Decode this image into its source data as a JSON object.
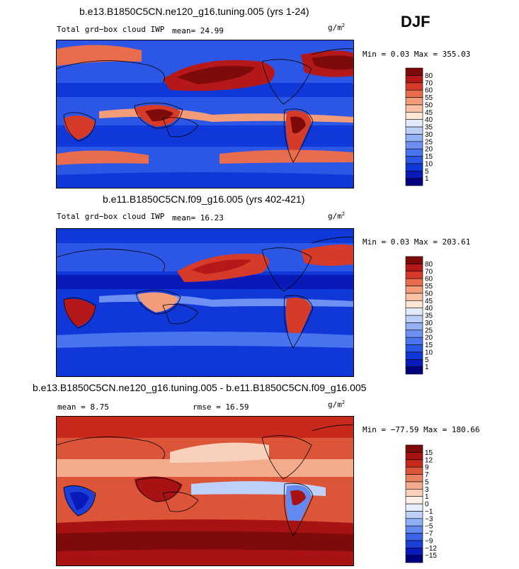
{
  "season": "DJF",
  "panels": [
    {
      "id": "p1",
      "title": "b.e13.B1850C5CN.ne120_g16.tuning.005 (yrs 1-24)",
      "left_label": "Total grd−box cloud IWP",
      "mean_text": "mean=  24.99",
      "units": "g/m",
      "units_sup": "2",
      "minmax": "Min =   0.03 Max = 355.03",
      "levels": [
        "1",
        "5",
        "10",
        "15",
        "20",
        "25",
        "30",
        "35",
        "40",
        "45",
        "50",
        "55",
        "60",
        "70",
        "80"
      ],
      "colors": [
        "#00007d",
        "#0a1ab9",
        "#1038d8",
        "#2c57e6",
        "#4a73ef",
        "#6d90f2",
        "#93b0f5",
        "#bccff8",
        "#e3eafb",
        "#fde6d6",
        "#f9c2a5",
        "#f39c7a",
        "#e86c4e",
        "#d63b2a",
        "#b41818",
        "#7e0a0a"
      ]
    },
    {
      "id": "p2",
      "title": "b.e11.B1850C5CN.f09_g16.005 (yrs 402-421)",
      "left_label": "Total grd−box cloud IWP",
      "mean_text": "mean=  16.23",
      "units": "g/m",
      "units_sup": "2",
      "minmax": "Min =   0.03 Max = 203.61",
      "levels": [
        "1",
        "5",
        "10",
        "15",
        "20",
        "25",
        "30",
        "35",
        "40",
        "45",
        "50",
        "55",
        "60",
        "70",
        "80"
      ],
      "colors": [
        "#00007d",
        "#0a1ab9",
        "#1038d8",
        "#2c57e6",
        "#4a73ef",
        "#6d90f2",
        "#93b0f5",
        "#bccff8",
        "#e3eafb",
        "#fde6d6",
        "#f9c2a5",
        "#f39c7a",
        "#e86c4e",
        "#d63b2a",
        "#b41818",
        "#7e0a0a"
      ]
    },
    {
      "id": "p3",
      "title": "b.e13.B1850C5CN.ne120_g16.tuning.005 - b.e11.B1850C5CN.f09_g16.005",
      "mean_text": "mean =   8.75",
      "rmse_text": "rmse =  16.59",
      "units": "g/m",
      "units_sup": "2",
      "minmax": "Min = −77.59 Max = 180.66",
      "levels": [
        "−15",
        "−12",
        "−9",
        "−7",
        "−5",
        "−3",
        "−1",
        "0",
        "1",
        "3",
        "5",
        "7",
        "9",
        "12",
        "15"
      ],
      "colors": [
        "#00007d",
        "#0a1ab9",
        "#1c3fd6",
        "#3a62e8",
        "#628af0",
        "#8eaef5",
        "#bdd0f9",
        "#e6eefb",
        "#fdeee6",
        "#f9d0bb",
        "#f3ab8e",
        "#ea8163",
        "#dd5538",
        "#c72a1d",
        "#a81212",
        "#7e0a0a"
      ]
    }
  ]
}
